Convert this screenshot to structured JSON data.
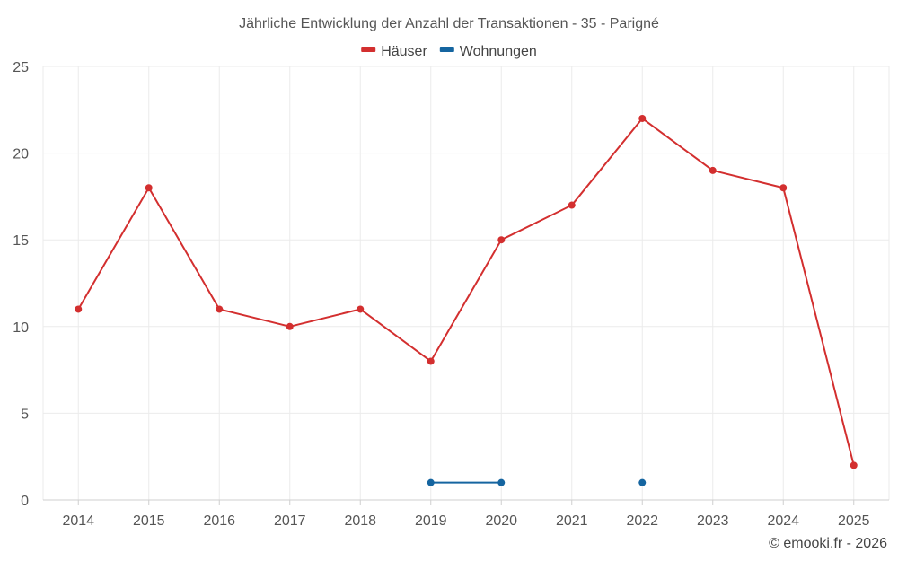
{
  "chart_data": {
    "type": "line",
    "title": "Jährliche Entwicklung der Anzahl der Transaktionen - 35 - Parigné",
    "categories": [
      "2014",
      "2015",
      "2016",
      "2017",
      "2018",
      "2019",
      "2020",
      "2021",
      "2022",
      "2023",
      "2024",
      "2025"
    ],
    "series": [
      {
        "name": "Häuser",
        "color": "#d32f2f",
        "values": [
          11,
          18,
          11,
          10,
          11,
          8,
          15,
          17,
          22,
          19,
          18,
          2
        ]
      },
      {
        "name": "Wohnungen",
        "color": "#1565a0",
        "values": [
          null,
          null,
          null,
          null,
          null,
          1,
          1,
          null,
          1,
          null,
          null,
          null
        ]
      }
    ],
    "ylim": [
      0,
      25
    ],
    "yticks": [
      0,
      5,
      10,
      15,
      20,
      25
    ],
    "xlabel": "",
    "ylabel": "",
    "grid": true,
    "legend_position": "top-center"
  },
  "credit": "© emooki.fr - 2026"
}
